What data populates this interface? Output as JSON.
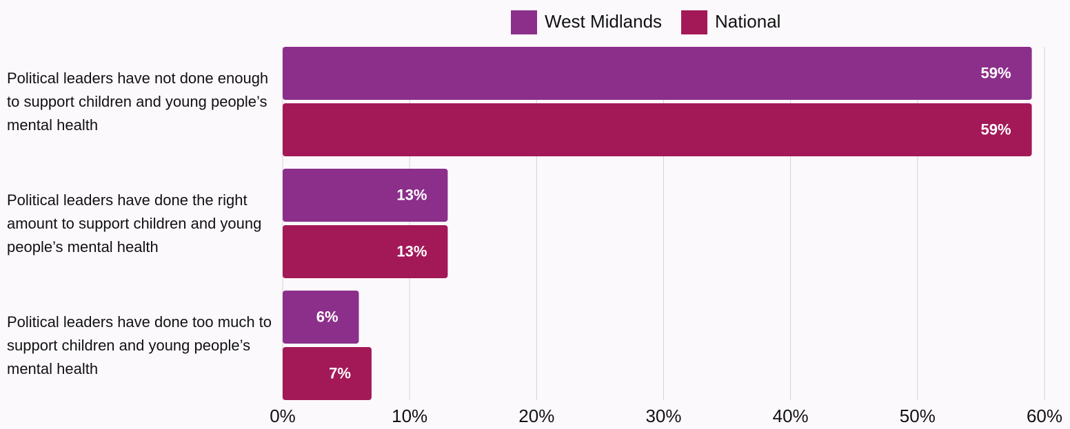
{
  "chart_data": {
    "type": "hbar",
    "categories": [
      "Political leaders have not done enough to support children and young people’s mental health",
      "Political leaders have done the right amount to support children and young people’s mental health",
      "Political leaders have done too much to support children and young people’s mental health"
    ],
    "series": [
      {
        "name": "West Midlands",
        "color": "#8b2f8a",
        "values": [
          59,
          13,
          6
        ],
        "value_labels": [
          "59%",
          "13%",
          "6%"
        ]
      },
      {
        "name": "National",
        "color": "#a31857",
        "values": [
          59,
          13,
          7
        ],
        "value_labels": [
          "59%",
          "13%",
          "7%"
        ]
      }
    ],
    "xlim": [
      0,
      60
    ],
    "xticks": [
      {
        "value": 0,
        "label": "0%"
      },
      {
        "value": 10,
        "label": "10%"
      },
      {
        "value": 20,
        "label": "20%"
      },
      {
        "value": 30,
        "label": "30%"
      },
      {
        "value": 40,
        "label": "40%"
      },
      {
        "value": 50,
        "label": "50%"
      },
      {
        "value": 60,
        "label": "60%"
      }
    ],
    "grid": true,
    "legend": "top"
  }
}
